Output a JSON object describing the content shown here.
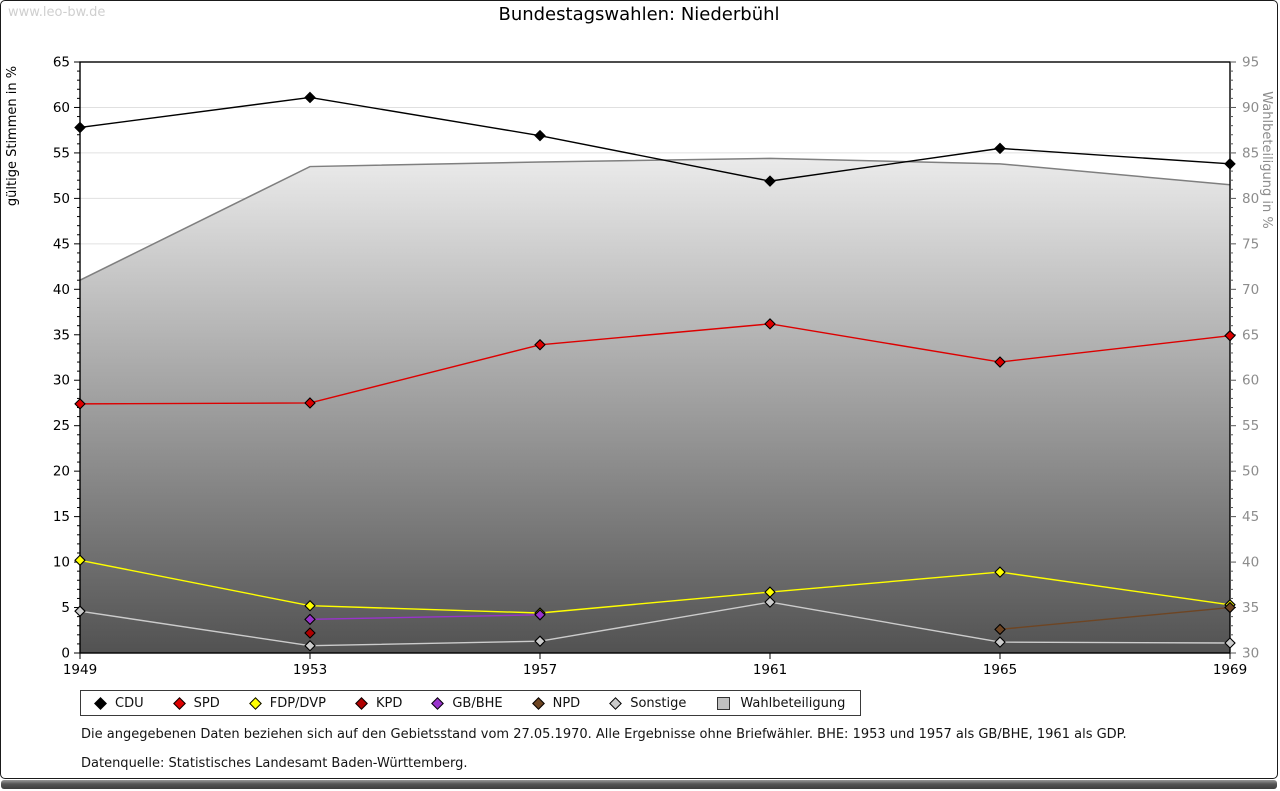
{
  "page": {
    "watermark": "www.leo-bw.de",
    "title": "Bundestagswahlen: Niederbühl",
    "footnote1": "Die angegebenen Daten beziehen sich auf den Gebietsstand vom 27.05.1970. Alle Ergebnisse ohne Briefwähler. BHE: 1953 und 1957 als GB/BHE, 1961 als GDP.",
    "footnote2": "Datenquelle: Statistisches Landesamt Baden-Württemberg."
  },
  "chart_data": {
    "type": "line",
    "title": "Bundestagswahlen: Niederbühl",
    "x_labels": [
      "1949",
      "1953",
      "1957",
      "1961",
      "1965",
      "1969"
    ],
    "ylabel_left": "gültige Stimmen in %",
    "ylabel_right": "Wahlbeteiligung in %",
    "ylim_left": [
      0,
      65
    ],
    "ylim_right": [
      30,
      95
    ],
    "ytick_step": 5,
    "grid": true,
    "legend_position": "bottom",
    "colors": {
      "grid": "#e0e0e0",
      "axis": "#000000",
      "right_axis_text": "#8c8c8c",
      "area_stroke": "#7f7f7f",
      "area_gradient_top": "#ffffff",
      "area_gradient_bottom": "#525252"
    },
    "series": [
      {
        "name": "CDU",
        "axis": "left",
        "kind": "line",
        "color": "#000000",
        "values": [
          57.8,
          61.1,
          56.9,
          51.9,
          55.5,
          53.8
        ]
      },
      {
        "name": "SPD",
        "axis": "left",
        "kind": "line",
        "color": "#dd0000",
        "values": [
          27.4,
          27.5,
          33.9,
          36.2,
          32.0,
          34.9
        ]
      },
      {
        "name": "FDP/DVP",
        "axis": "left",
        "kind": "line",
        "color": "#ffff00",
        "values": [
          10.2,
          5.2,
          4.4,
          6.7,
          8.9,
          5.3
        ]
      },
      {
        "name": "KPD",
        "axis": "left",
        "kind": "line",
        "color": "#b00000",
        "values": [
          null,
          2.2,
          null,
          null,
          null,
          null
        ]
      },
      {
        "name": "GB/BHE",
        "axis": "left",
        "kind": "line",
        "color": "#9933cc",
        "values": [
          null,
          3.7,
          4.2,
          null,
          null,
          null
        ]
      },
      {
        "name": "NPD",
        "axis": "left",
        "kind": "line",
        "color": "#6e4523",
        "values": [
          null,
          null,
          null,
          null,
          2.6,
          5.0
        ]
      },
      {
        "name": "Sonstige",
        "axis": "left",
        "kind": "line",
        "color": "#cccccc",
        "values": [
          4.6,
          0.8,
          1.3,
          5.6,
          1.2,
          1.1
        ]
      },
      {
        "name": "Wahlbeteiligung",
        "axis": "right",
        "kind": "area",
        "color": "#7f7f7f",
        "legend_fill": "#c0c0c0",
        "values": [
          71.0,
          83.5,
          84.0,
          84.4,
          83.8,
          81.5
        ]
      }
    ]
  }
}
